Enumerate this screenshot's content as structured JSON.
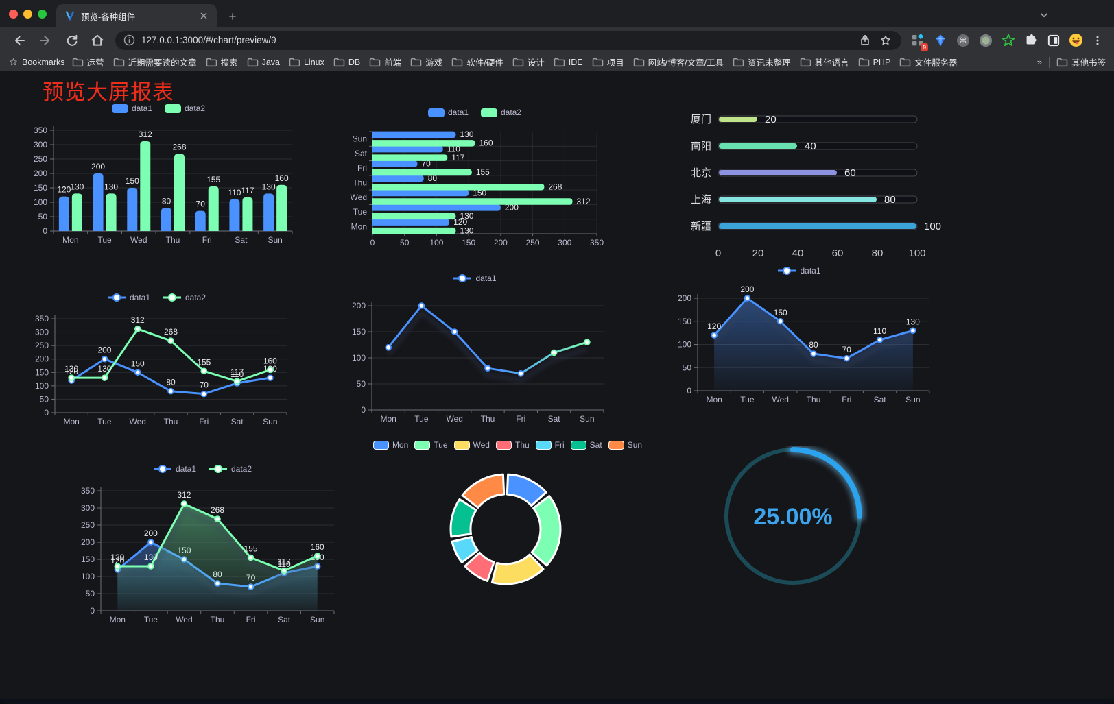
{
  "browser": {
    "tab_title": "预览-各种组件",
    "url": "127.0.0.1:3000/#/chart/preview/9",
    "extension_badge": "9",
    "bookmarks_label": "Bookmarks",
    "bookmark_folders": [
      "运营",
      "近期需要读的文章",
      "搜索",
      "Java",
      "Linux",
      "DB",
      "前端",
      "游戏",
      "软件/硬件",
      "设计",
      "IDE",
      "项目",
      "网站/博客/文章/工具",
      "资讯未整理",
      "其他语言",
      "PHP",
      "文件服务器"
    ],
    "bookmarks_overflow": "»",
    "other_bookmarks": "其他书签"
  },
  "page": {
    "title": "预览大屏报表",
    "title_color": "#ee2d1b",
    "background": "#15161a"
  },
  "palette": {
    "data1": "#4992ff",
    "data2": "#7cffb2"
  },
  "chart_data": [
    {
      "id": "grouped-bar",
      "type": "bar",
      "title": "",
      "categories": [
        "Mon",
        "Tue",
        "Wed",
        "Thu",
        "Fri",
        "Sat",
        "Sun"
      ],
      "series": [
        {
          "name": "data1",
          "color": "#4992ff",
          "values": [
            120,
            200,
            150,
            80,
            70,
            110,
            130
          ]
        },
        {
          "name": "data2",
          "color": "#7cffb2",
          "values": [
            130,
            130,
            312,
            268,
            155,
            117,
            160
          ]
        }
      ],
      "ylim": [
        0,
        350
      ],
      "ytick": 50,
      "legend_position": "top",
      "grid": true
    },
    {
      "id": "horizontal-bar",
      "type": "bar",
      "orientation": "horizontal",
      "category_order": "top-to-bottom",
      "categories": [
        "Sun",
        "Sat",
        "Fri",
        "Thu",
        "Wed",
        "Tue",
        "Mon"
      ],
      "series": [
        {
          "name": "data1",
          "color": "#4992ff",
          "values": [
            130,
            110,
            70,
            80,
            150,
            200,
            120
          ]
        },
        {
          "name": "data2",
          "color": "#7cffb2",
          "values": [
            160,
            117,
            155,
            268,
            312,
            130,
            130
          ]
        }
      ],
      "xlim": [
        0,
        350
      ],
      "xtick": 50,
      "legend_position": "top",
      "grid": true
    },
    {
      "id": "progress-bars",
      "type": "bar",
      "subtype": "progress",
      "rows": [
        {
          "label": "厦门",
          "value": 20,
          "color": "#bfe389"
        },
        {
          "label": "南阳",
          "value": 40,
          "color": "#69e0b0"
        },
        {
          "label": "北京",
          "value": 60,
          "color": "#8d93e1"
        },
        {
          "label": "上海",
          "value": 80,
          "color": "#85e6e1"
        },
        {
          "label": "新疆",
          "value": 100,
          "color": "#3ba3d8"
        }
      ],
      "xlim": [
        0,
        100
      ],
      "xticks": [
        0,
        20,
        40,
        60,
        80,
        100
      ]
    },
    {
      "id": "line-two-series",
      "type": "line",
      "categories": [
        "Mon",
        "Tue",
        "Wed",
        "Thu",
        "Fri",
        "Sat",
        "Sun"
      ],
      "series": [
        {
          "name": "data1",
          "color": "#4992ff",
          "values": [
            120,
            200,
            150,
            80,
            70,
            110,
            130
          ]
        },
        {
          "name": "data2",
          "color": "#7cffb2",
          "values": [
            130,
            130,
            312,
            268,
            155,
            117,
            160
          ]
        }
      ],
      "ylim": [
        0,
        350
      ],
      "ytick": 50,
      "show_labels": true,
      "legend_position": "top"
    },
    {
      "id": "line-gradient",
      "type": "line",
      "categories": [
        "Mon",
        "Tue",
        "Wed",
        "Thu",
        "Fri",
        "Sat",
        "Sun"
      ],
      "series": [
        {
          "name": "data1",
          "gradient": [
            "#4992ff",
            "#7cffb2"
          ],
          "values": [
            120,
            200,
            150,
            80,
            70,
            110,
            130
          ]
        }
      ],
      "ylim": [
        0,
        200
      ],
      "ytick": 50,
      "show_labels": false,
      "legend_position": "top"
    },
    {
      "id": "area-single",
      "type": "area",
      "categories": [
        "Mon",
        "Tue",
        "Wed",
        "Thu",
        "Fri",
        "Sat",
        "Sun"
      ],
      "series": [
        {
          "name": "data1",
          "color": "#4992ff",
          "values": [
            120,
            200,
            150,
            80,
            70,
            110,
            130
          ]
        }
      ],
      "ylim": [
        0,
        200
      ],
      "ytick": 50,
      "show_labels": true,
      "legend_position": "top"
    },
    {
      "id": "area-two-series",
      "type": "area",
      "categories": [
        "Mon",
        "Tue",
        "Wed",
        "Thu",
        "Fri",
        "Sat",
        "Sun"
      ],
      "series": [
        {
          "name": "data1",
          "color": "#4992ff",
          "values": [
            120,
            200,
            150,
            80,
            70,
            110,
            130
          ]
        },
        {
          "name": "data2",
          "color": "#7cffb2",
          "values": [
            130,
            130,
            312,
            268,
            155,
            117,
            160
          ]
        }
      ],
      "ylim": [
        0,
        350
      ],
      "ytick": 50,
      "show_labels": true,
      "legend_position": "top"
    },
    {
      "id": "donut",
      "type": "pie",
      "inner_radius": "64%",
      "categories": [
        "Mon",
        "Tue",
        "Wed",
        "Thu",
        "Fri",
        "Sat",
        "Sun"
      ],
      "values": [
        120,
        200,
        150,
        80,
        70,
        110,
        130
      ],
      "colors": [
        "#4992ff",
        "#7cffb2",
        "#fddd60",
        "#ff6e76",
        "#58d9f9",
        "#05c091",
        "#ff8a45"
      ],
      "legend_position": "top",
      "border_color": "#ffffff"
    },
    {
      "id": "gauge",
      "type": "gauge",
      "value_label": "25.00%",
      "percent": 25,
      "color": "#2ba3ef",
      "glow_color": "#7fd0ff",
      "track_color": "#1c4b58",
      "text_color": "#3ba4ec"
    }
  ]
}
